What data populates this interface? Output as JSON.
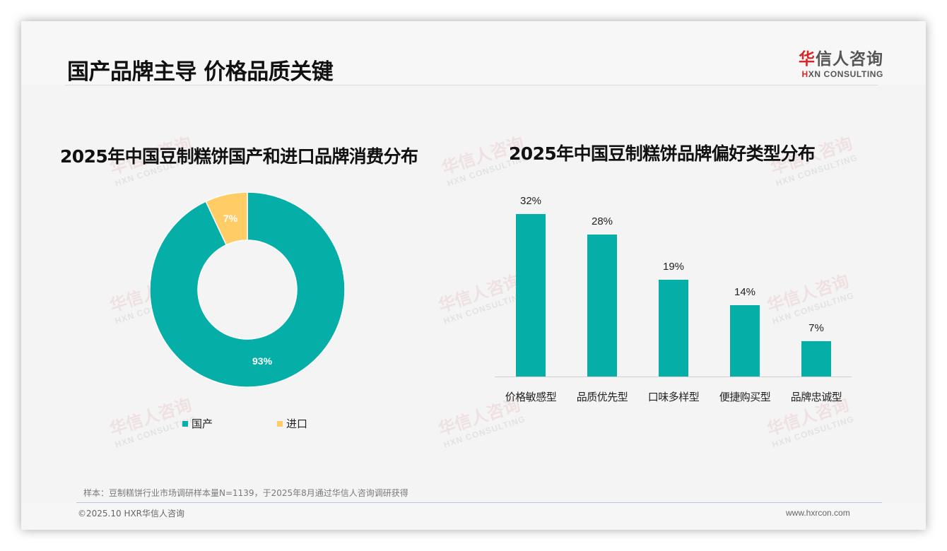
{
  "header": {
    "title": "国产品牌主导 价格品质关键",
    "logo": {
      "cn_first": "华",
      "cn_rest": "信人咨询",
      "en_first": "H",
      "en_rest": "XN CONSULTING"
    }
  },
  "colors": {
    "teal": "#05AFA7",
    "yellow": "#FFCC66",
    "logo_red": "#D7262A"
  },
  "watermark": {
    "cn": "华信人咨询",
    "en": "HXN CONSULTING"
  },
  "footer": {
    "note": "样本：豆制糕饼行业市场调研样本量N=1139，于2025年8月通过华信人咨询调研获得",
    "copyright": "©2025.10 HXR华信人咨询",
    "website": "www.hxrcon.com"
  },
  "chart_data": [
    {
      "type": "pie",
      "variant": "donut",
      "title": "2025年中国豆制糕饼国产和进口品牌消费分布",
      "categories": [
        "国产",
        "进口"
      ],
      "values": [
        93,
        7
      ],
      "labels": [
        "93%",
        "7%"
      ],
      "colors": [
        "#05AFA7",
        "#FFCC66"
      ],
      "legend_position": "bottom"
    },
    {
      "type": "bar",
      "title": "2025年中国豆制糕饼品牌偏好类型分布",
      "categories": [
        "价格敏感型",
        "品质优先型",
        "口味多样型",
        "便捷购买型",
        "品牌忠诚型"
      ],
      "values": [
        32,
        28,
        19,
        14,
        7
      ],
      "labels": [
        "32%",
        "28%",
        "19%",
        "14%",
        "7%"
      ],
      "color": "#05AFA7",
      "xlabel": "",
      "ylabel": "",
      "ylim": [
        0,
        35
      ],
      "grid": false,
      "legend": false
    }
  ]
}
